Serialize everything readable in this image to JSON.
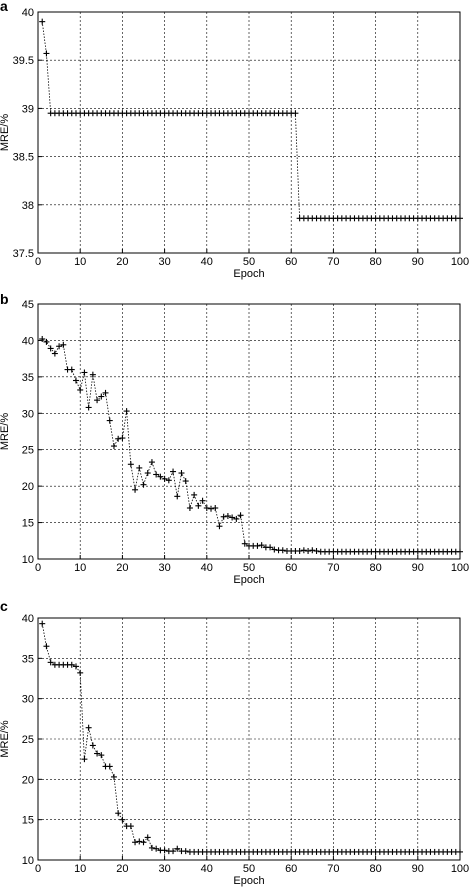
{
  "chart_data": [
    {
      "panel": "a",
      "type": "line",
      "xlabel": "Epoch",
      "ylabel": "MRE/%",
      "xlim": [
        0,
        100
      ],
      "ylim": [
        37.5,
        40
      ],
      "xticks": [
        "0",
        "10",
        "20",
        "30",
        "40",
        "50",
        "60",
        "70",
        "80",
        "90",
        "100"
      ],
      "yticks": [
        "37.5",
        "38",
        "38.5",
        "39",
        "39.5",
        "40"
      ],
      "grid": true,
      "marker": "+",
      "segments": [
        {
          "x_start": 1,
          "x_end": 1,
          "values": [
            39.9
          ]
        },
        {
          "x_start": 2,
          "x_end": 2,
          "values": [
            39.57
          ]
        },
        {
          "x_start": 3,
          "x_end": 61,
          "values": [
            38.95
          ]
        },
        {
          "x_start": 62,
          "x_end": 100,
          "values": [
            37.86
          ]
        }
      ]
    },
    {
      "panel": "b",
      "type": "line",
      "xlabel": "Epoch",
      "ylabel": "MRE/%",
      "xlim": [
        0,
        100
      ],
      "ylim": [
        10,
        45
      ],
      "xticks": [
        "0",
        "10",
        "20",
        "30",
        "40",
        "50",
        "60",
        "70",
        "80",
        "90",
        "100"
      ],
      "yticks": [
        "10",
        "15",
        "20",
        "25",
        "30",
        "35",
        "40",
        "45"
      ],
      "grid": true,
      "marker": "+",
      "segments": [
        {
          "x_start": 1,
          "x_end": 66,
          "values": [
            40.2,
            39.8,
            38.9,
            38.2,
            39.2,
            39.4,
            36.0,
            36.0,
            34.5,
            33.2,
            35.6,
            30.8,
            35.3,
            31.8,
            32.3,
            32.8,
            29.0,
            25.5,
            26.5,
            26.6,
            30.3,
            23.0,
            19.5,
            22.5,
            20.2,
            21.8,
            23.3,
            21.6,
            21.3,
            21.0,
            20.8,
            22.0,
            18.6,
            21.8,
            20.7,
            17.0,
            18.8,
            17.3,
            18.0,
            17.0,
            16.9,
            17.0,
            14.5,
            15.8,
            15.9,
            15.7,
            15.5,
            16.0,
            12.1,
            11.8,
            11.8,
            11.8,
            11.9,
            11.6,
            11.6,
            11.3,
            11.2,
            11.2,
            11.1,
            11.1,
            11.1,
            11.1,
            11.2,
            11.1,
            11.2,
            11.1
          ]
        },
        {
          "x_start": 67,
          "x_end": 100,
          "values": [
            11.0
          ]
        }
      ]
    },
    {
      "panel": "c",
      "type": "line",
      "xlabel": "Epoch",
      "ylabel": "MRE/%",
      "xlim": [
        0,
        100
      ],
      "ylim": [
        10,
        40
      ],
      "xticks": [
        "0",
        "10",
        "20",
        "30",
        "40",
        "50",
        "60",
        "70",
        "80",
        "90",
        "100"
      ],
      "yticks": [
        "10",
        "15",
        "20",
        "25",
        "30",
        "35",
        "40"
      ],
      "grid": true,
      "marker": "+",
      "segments": [
        {
          "x_start": 1,
          "x_end": 35,
          "values": [
            39.3,
            36.5,
            34.5,
            34.2,
            34.2,
            34.2,
            34.2,
            34.2,
            34.0,
            33.2,
            22.5,
            26.4,
            24.2,
            23.2,
            23.0,
            21.6,
            21.6,
            20.3,
            15.8,
            15.0,
            14.2,
            14.2,
            12.2,
            12.3,
            12.2,
            12.8,
            11.5,
            11.4,
            11.2,
            11.2,
            11.1,
            11.1,
            11.4,
            11.1,
            11.1
          ]
        },
        {
          "x_start": 36,
          "x_end": 100,
          "values": [
            11.0
          ]
        }
      ]
    }
  ]
}
